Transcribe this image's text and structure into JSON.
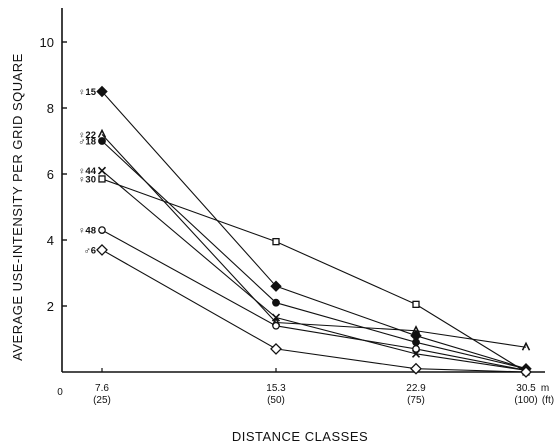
{
  "chart_data": {
    "type": "line",
    "title": "",
    "xlabel": "DISTANCE CLASSES",
    "ylabel": "AVERAGE USE-INTENSITY PER GRID SQUARE",
    "ylim": [
      0,
      10
    ],
    "yticks": [
      "2",
      "4",
      "6",
      "8",
      "10"
    ],
    "origin_label": "0",
    "x": [
      7.6,
      15.3,
      22.9,
      30.5
    ],
    "x_tick_labels": [
      {
        "value": "7.6",
        "feet": "(25)"
      },
      {
        "value": "15.3",
        "feet": "(50)"
      },
      {
        "value": "22.9",
        "feet": "(75)"
      },
      {
        "value": "30.5",
        "feet": "(100)"
      }
    ],
    "x_unit_primary": "m",
    "x_unit_secondary": "(ft)",
    "series": [
      {
        "name": "♀15",
        "marker": "diamond-filled",
        "values": [
          8.5,
          2.6,
          1.1,
          0.1
        ]
      },
      {
        "name": "♀22",
        "marker": "caret",
        "values": [
          7.2,
          1.5,
          1.25,
          0.75
        ]
      },
      {
        "name": "♂18",
        "marker": "circle-filled",
        "values": [
          7.0,
          2.1,
          0.9,
          0.1
        ]
      },
      {
        "name": "♀44",
        "marker": "x",
        "values": [
          6.1,
          1.65,
          0.55,
          0.05
        ]
      },
      {
        "name": "♀30",
        "marker": "square",
        "values": [
          5.85,
          3.95,
          2.05,
          0.0
        ]
      },
      {
        "name": "♀48",
        "marker": "circle-open",
        "values": [
          4.3,
          1.4,
          0.7,
          0.05
        ]
      },
      {
        "name": "♂6",
        "marker": "diamond-open",
        "values": [
          3.7,
          0.7,
          0.1,
          0.0
        ]
      }
    ]
  }
}
